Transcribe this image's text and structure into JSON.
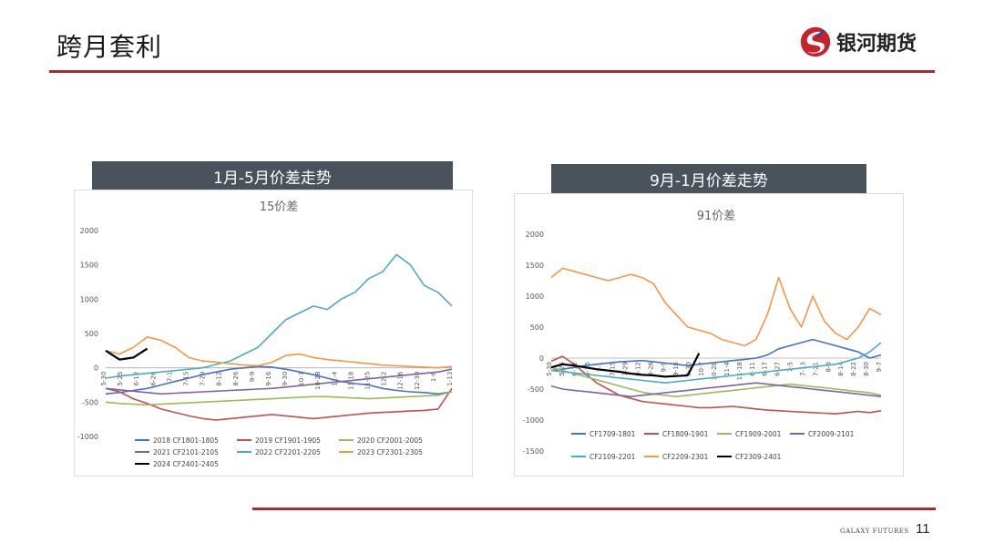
{
  "header": {
    "title": "跨月套利",
    "logo_text": "银河期货"
  },
  "footer": {
    "brand": "GALAXY FUTURES",
    "page_number": "11"
  },
  "panels": [
    {
      "title": "1月-5月价差走势"
    },
    {
      "title": "9月-1月价差走势"
    }
  ],
  "colors": {
    "accent_red": "#b3262c",
    "panel_header": "#4a535c"
  },
  "chart_data": [
    {
      "type": "line",
      "title": "15价差",
      "ylim": [
        -1000,
        2000
      ],
      "yticks": [
        -1000,
        -500,
        0,
        500,
        1000,
        1500,
        2000
      ],
      "x_tick_labels": [
        "5-30",
        "5-25",
        "6-12",
        "6-26",
        "7-1",
        "7-15",
        "7-29",
        "8-12",
        "8-26",
        "9-9",
        "9-16",
        "9-30",
        "10-7",
        "10-28",
        "11-4",
        "11-18",
        "11-25",
        "12-2",
        "12-16",
        "12-30",
        "1-6",
        "1-13"
      ],
      "legend_position": "bottom",
      "series": [
        {
          "name": "2018 CF1801-1805",
          "color": "#4472c4",
          "values": [
            -380,
            -360,
            -330,
            -300,
            -250,
            -200,
            -150,
            -100,
            -60,
            -20,
            0,
            20,
            10,
            -20,
            -60,
            -100,
            -150,
            -200,
            -230,
            -250,
            -300,
            -330,
            -350,
            -360,
            -380,
            -350
          ]
        },
        {
          "name": "2019 CF1901-1905",
          "color": "#c0504d",
          "values": [
            -300,
            -350,
            -450,
            -520,
            -600,
            -650,
            -700,
            -740,
            -760,
            -740,
            -720,
            -700,
            -680,
            -700,
            -720,
            -740,
            -720,
            -700,
            -680,
            -660,
            -650,
            -640,
            -630,
            -620,
            -600,
            -300
          ]
        },
        {
          "name": "2020 CF2001-2005",
          "color": "#9bbb59",
          "values": [
            -500,
            -520,
            -530,
            -540,
            -530,
            -520,
            -510,
            -500,
            -490,
            -480,
            -470,
            -460,
            -450,
            -440,
            -430,
            -420,
            -420,
            -430,
            -440,
            -450,
            -440,
            -430,
            -420,
            -410,
            -400,
            -350
          ]
        },
        {
          "name": "2021 CF2101-2105",
          "color": "#8064a2",
          "values": [
            -300,
            -320,
            -340,
            -360,
            -380,
            -370,
            -360,
            -350,
            -340,
            -330,
            -320,
            -310,
            -300,
            -280,
            -260,
            -240,
            -220,
            -200,
            -180,
            -160,
            -140,
            -120,
            -100,
            -80,
            -60,
            -20
          ]
        },
        {
          "name": "2022 CF2201-2205",
          "color": "#4bacc6",
          "values": [
            -150,
            -120,
            -100,
            -80,
            -60,
            -40,
            -20,
            0,
            50,
            100,
            200,
            300,
            500,
            700,
            800,
            900,
            850,
            1000,
            1100,
            1300,
            1400,
            1650,
            1500,
            1200,
            1100,
            900
          ]
        },
        {
          "name": "2023 CF2301-2305",
          "color": "#f79646",
          "values": [
            250,
            200,
            300,
            450,
            400,
            300,
            150,
            100,
            80,
            60,
            40,
            30,
            80,
            180,
            200,
            150,
            120,
            100,
            80,
            60,
            40,
            30,
            20,
            10,
            0,
            20
          ]
        },
        {
          "name": "2024 CF2401-2405",
          "color": "#000000",
          "values": [
            250,
            120,
            150,
            280
          ]
        }
      ]
    },
    {
      "type": "line",
      "title": "91价差",
      "ylim": [
        -1500,
        2000
      ],
      "yticks": [
        -1500,
        -1000,
        -500,
        0,
        500,
        1000,
        1500,
        2000
      ],
      "x_tick_labels": [
        "5-30",
        "5-25",
        "6-12",
        "6-26",
        "7-1",
        "7-15",
        "7-29",
        "8-12",
        "8-26",
        "9-9",
        "9-16",
        "9-30",
        "10-7",
        "10-28",
        "11-4",
        "11-18",
        "6-11",
        "6-17",
        "6-27",
        "7-5",
        "7-13",
        "7-21",
        "8-8",
        "8-14",
        "8-22",
        "8-30",
        "9-7"
      ],
      "legend_position": "bottom",
      "series": [
        {
          "name": "CF1709-1801",
          "color": "#4472c4",
          "values": [
            -200,
            -180,
            -150,
            -120,
            -100,
            -80,
            -60,
            -50,
            -40,
            -60,
            -80,
            -100,
            -120,
            -100,
            -80,
            -60,
            -40,
            -20,
            0,
            50,
            150,
            200,
            250,
            300,
            250,
            200,
            150,
            100,
            0,
            50
          ]
        },
        {
          "name": "CF1809-1901",
          "color": "#c0504d",
          "values": [
            -50,
            30,
            -100,
            -250,
            -400,
            -500,
            -600,
            -650,
            -700,
            -720,
            -740,
            -760,
            -780,
            -800,
            -800,
            -790,
            -780,
            -800,
            -820,
            -840,
            -850,
            -860,
            -870,
            -880,
            -890,
            -900,
            -880,
            -860,
            -880,
            -850
          ]
        },
        {
          "name": "CF1909-2001",
          "color": "#9bbb59",
          "values": [
            -150,
            -200,
            -250,
            -300,
            -350,
            -400,
            -450,
            -500,
            -550,
            -580,
            -600,
            -620,
            -600,
            -580,
            -560,
            -540,
            -520,
            -500,
            -480,
            -460,
            -440,
            -420,
            -440,
            -460,
            -480,
            -500,
            -520,
            -540,
            -560,
            -600
          ]
        },
        {
          "name": "CF2009-2101",
          "color": "#8064a2",
          "values": [
            -450,
            -500,
            -520,
            -540,
            -560,
            -580,
            -600,
            -620,
            -600,
            -580,
            -560,
            -540,
            -520,
            -500,
            -480,
            -460,
            -440,
            -420,
            -400,
            -420,
            -440,
            -460,
            -480,
            -500,
            -520,
            -540,
            -560,
            -580,
            -600,
            -620
          ]
        },
        {
          "name": "CF2109-2201",
          "color": "#4bacc6",
          "values": [
            -200,
            -220,
            -240,
            -260,
            -280,
            -300,
            -320,
            -340,
            -360,
            -380,
            -400,
            -380,
            -360,
            -340,
            -320,
            -300,
            -280,
            -260,
            -240,
            -220,
            -200,
            -180,
            -160,
            -140,
            -120,
            -100,
            -50,
            0,
            100,
            250
          ]
        },
        {
          "name": "CF2209-2301",
          "color": "#f79646",
          "values": [
            1300,
            1450,
            1400,
            1350,
            1300,
            1250,
            1300,
            1350,
            1300,
            1200,
            900,
            700,
            500,
            450,
            400,
            300,
            250,
            200,
            300,
            700,
            1300,
            800,
            500,
            1000,
            600,
            400,
            300,
            500,
            800,
            700
          ]
        },
        {
          "name": "CF2309-2401",
          "color": "#000000",
          "values": [
            -150,
            -100,
            -120,
            -150,
            -180,
            -200,
            -220,
            -250,
            -270,
            -280,
            -300,
            -290,
            -280,
            80
          ]
        }
      ]
    }
  ]
}
